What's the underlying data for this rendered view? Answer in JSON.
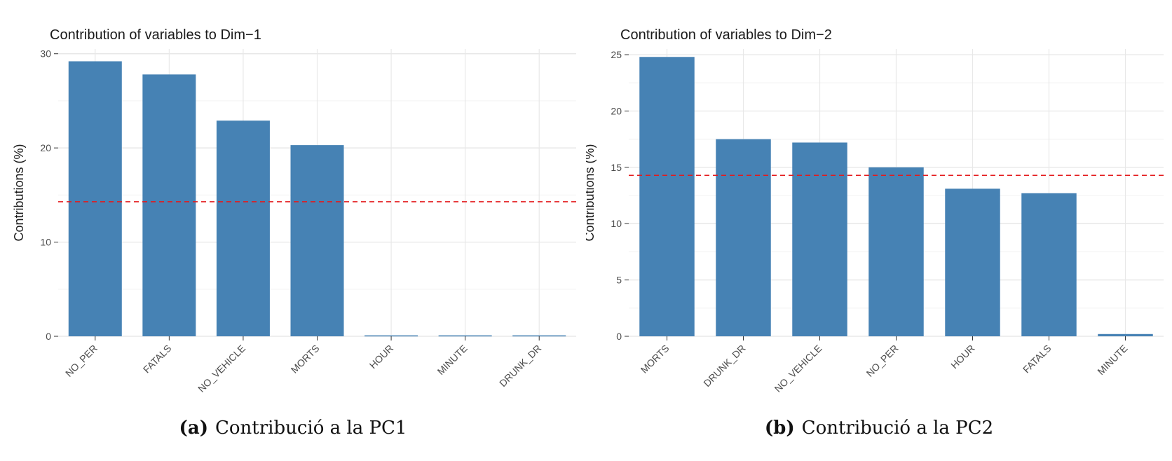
{
  "chart_data": [
    {
      "type": "bar",
      "title": "Contribution of variables to Dim−1",
      "ylabel": "Contributions (%)",
      "xlabel": "",
      "categories": [
        "NO_PER",
        "FATALS",
        "NO_VEHICLE",
        "MORTS",
        "HOUR",
        "MINUTE",
        "DRUNK_DR"
      ],
      "values": [
        29.2,
        27.8,
        22.9,
        20.3,
        0.1,
        0.1,
        0.1
      ],
      "yticks": [
        0,
        10,
        20,
        30
      ],
      "ylim": [
        0,
        30.5
      ],
      "reference_line": 14.29,
      "bar_color": "#4682b4",
      "reference_color": "#e41a1c",
      "grid": true,
      "legend": "none",
      "caption_label": "(a)",
      "caption_text": "Contribució a la PC1"
    },
    {
      "type": "bar",
      "title": "Contribution of variables to Dim−2",
      "ylabel": "Contributions (%)",
      "xlabel": "",
      "categories": [
        "MORTS",
        "DRUNK_DR",
        "NO_VEHICLE",
        "NO_PER",
        "HOUR",
        "FATALS",
        "MINUTE"
      ],
      "values": [
        24.8,
        17.5,
        17.2,
        15.0,
        13.1,
        12.7,
        0.2
      ],
      "yticks": [
        0,
        5,
        10,
        15,
        20,
        25
      ],
      "ylim": [
        0,
        25.5
      ],
      "reference_line": 14.29,
      "bar_color": "#4682b4",
      "reference_color": "#e41a1c",
      "grid": true,
      "legend": "none",
      "caption_label": "(b)",
      "caption_text": "Contribució a la PC2"
    }
  ]
}
